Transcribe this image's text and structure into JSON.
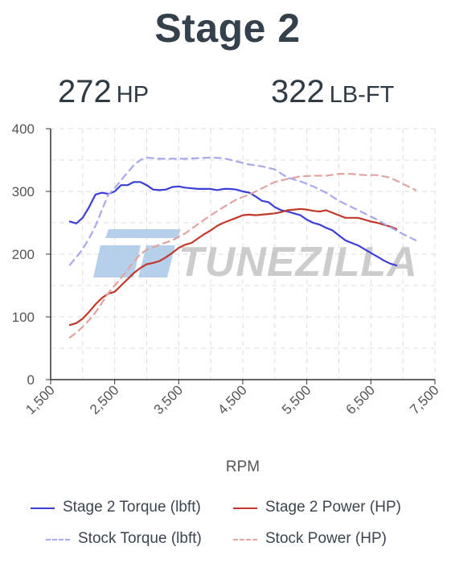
{
  "header": {
    "title": "Stage 2",
    "hp_value": "272",
    "hp_unit": "HP",
    "tq_value": "322",
    "tq_unit": "LB-FT"
  },
  "watermark": {
    "text": "TUNEZILLA"
  },
  "colors": {
    "stage2_torque": "#3b3fd8",
    "stage2_power": "#c0392b",
    "stock_torque": "#a8a8ee",
    "stock_power": "#e2a3a0",
    "grid": "#dcdcdc",
    "axis": "#333333",
    "watermark_blue": "#a9c8e8",
    "watermark_gray": "#c4c4c4"
  },
  "chart_data": {
    "type": "line",
    "title": "",
    "xlabel": "RPM",
    "ylabel": "",
    "xlim": [
      1500,
      7500
    ],
    "ylim": [
      0,
      400
    ],
    "x_ticks": [
      "1,500",
      "2,500",
      "3,500",
      "4,500",
      "5,500",
      "6,500",
      "7,500"
    ],
    "y_ticks": [
      "0",
      "100",
      "200",
      "300",
      "400"
    ],
    "grid": true,
    "legend_position": "bottom",
    "series": [
      {
        "name": "Stage 2 Torque (lbft)",
        "style": "solid",
        "color_key": "stage2_torque",
        "points": [
          [
            1800,
            252
          ],
          [
            1900,
            249
          ],
          [
            2000,
            258
          ],
          [
            2100,
            275
          ],
          [
            2200,
            295
          ],
          [
            2300,
            298
          ],
          [
            2400,
            296
          ],
          [
            2500,
            300
          ],
          [
            2600,
            310
          ],
          [
            2700,
            310
          ],
          [
            2800,
            315
          ],
          [
            2900,
            315
          ],
          [
            3000,
            310
          ],
          [
            3100,
            303
          ],
          [
            3200,
            302
          ],
          [
            3300,
            303
          ],
          [
            3400,
            307
          ],
          [
            3500,
            308
          ],
          [
            3600,
            306
          ],
          [
            3800,
            304
          ],
          [
            4000,
            304
          ],
          [
            4100,
            302
          ],
          [
            4200,
            304
          ],
          [
            4300,
            304
          ],
          [
            4400,
            303
          ],
          [
            4500,
            300
          ],
          [
            4600,
            298
          ],
          [
            4700,
            292
          ],
          [
            4800,
            285
          ],
          [
            4900,
            283
          ],
          [
            5000,
            275
          ],
          [
            5100,
            270
          ],
          [
            5200,
            268
          ],
          [
            5300,
            265
          ],
          [
            5400,
            262
          ],
          [
            5500,
            255
          ],
          [
            5600,
            250
          ],
          [
            5700,
            247
          ],
          [
            5800,
            242
          ],
          [
            5900,
            238
          ],
          [
            6000,
            230
          ],
          [
            6100,
            222
          ],
          [
            6200,
            218
          ],
          [
            6300,
            214
          ],
          [
            6400,
            208
          ],
          [
            6500,
            202
          ],
          [
            6600,
            196
          ],
          [
            6700,
            190
          ],
          [
            6800,
            185
          ],
          [
            6900,
            182
          ]
        ]
      },
      {
        "name": "Stage 2 Power (HP)",
        "style": "solid",
        "color_key": "stage2_power",
        "points": [
          [
            1800,
            87
          ],
          [
            1900,
            90
          ],
          [
            2000,
            97
          ],
          [
            2100,
            108
          ],
          [
            2200,
            120
          ],
          [
            2300,
            130
          ],
          [
            2400,
            137
          ],
          [
            2500,
            140
          ],
          [
            2600,
            150
          ],
          [
            2700,
            160
          ],
          [
            2800,
            170
          ],
          [
            2900,
            178
          ],
          [
            3000,
            184
          ],
          [
            3100,
            186
          ],
          [
            3200,
            189
          ],
          [
            3300,
            195
          ],
          [
            3400,
            202
          ],
          [
            3500,
            210
          ],
          [
            3600,
            215
          ],
          [
            3700,
            218
          ],
          [
            3800,
            225
          ],
          [
            3900,
            232
          ],
          [
            4000,
            238
          ],
          [
            4100,
            245
          ],
          [
            4200,
            250
          ],
          [
            4300,
            254
          ],
          [
            4400,
            258
          ],
          [
            4500,
            262
          ],
          [
            4600,
            263
          ],
          [
            4700,
            262
          ],
          [
            4800,
            263
          ],
          [
            4900,
            264
          ],
          [
            5000,
            265
          ],
          [
            5100,
            267
          ],
          [
            5200,
            270
          ],
          [
            5300,
            271
          ],
          [
            5400,
            272
          ],
          [
            5500,
            271
          ],
          [
            5600,
            269
          ],
          [
            5700,
            268
          ],
          [
            5800,
            270
          ],
          [
            5900,
            266
          ],
          [
            6000,
            262
          ],
          [
            6100,
            258
          ],
          [
            6200,
            258
          ],
          [
            6300,
            258
          ],
          [
            6400,
            255
          ],
          [
            6500,
            252
          ],
          [
            6600,
            250
          ],
          [
            6700,
            247
          ],
          [
            6800,
            244
          ],
          [
            6900,
            240
          ]
        ]
      },
      {
        "name": "Stock Torque (lbft)",
        "style": "dashed",
        "color_key": "stock_torque",
        "points": [
          [
            1800,
            183
          ],
          [
            1900,
            195
          ],
          [
            2000,
            208
          ],
          [
            2100,
            225
          ],
          [
            2200,
            245
          ],
          [
            2300,
            270
          ],
          [
            2400,
            295
          ],
          [
            2500,
            305
          ],
          [
            2600,
            318
          ],
          [
            2700,
            330
          ],
          [
            2800,
            342
          ],
          [
            2900,
            350
          ],
          [
            3000,
            354
          ],
          [
            3100,
            353
          ],
          [
            3200,
            352
          ],
          [
            3400,
            352
          ],
          [
            3600,
            352
          ],
          [
            3800,
            353
          ],
          [
            4000,
            354
          ],
          [
            4200,
            353
          ],
          [
            4400,
            348
          ],
          [
            4600,
            343
          ],
          [
            4800,
            340
          ],
          [
            5000,
            335
          ],
          [
            5200,
            322
          ],
          [
            5400,
            316
          ],
          [
            5600,
            308
          ],
          [
            5800,
            298
          ],
          [
            6000,
            285
          ],
          [
            6200,
            275
          ],
          [
            6400,
            265
          ],
          [
            6600,
            255
          ],
          [
            6800,
            243
          ],
          [
            7000,
            232
          ],
          [
            7200,
            222
          ]
        ]
      },
      {
        "name": "Stock Power (HP)",
        "style": "dashed",
        "color_key": "stock_power",
        "points": [
          [
            1800,
            67
          ],
          [
            1900,
            75
          ],
          [
            2000,
            84
          ],
          [
            2100,
            95
          ],
          [
            2200,
            107
          ],
          [
            2300,
            122
          ],
          [
            2400,
            138
          ],
          [
            2500,
            150
          ],
          [
            2600,
            162
          ],
          [
            2700,
            175
          ],
          [
            2800,
            188
          ],
          [
            2900,
            200
          ],
          [
            3000,
            207
          ],
          [
            3200,
            215
          ],
          [
            3400,
            222
          ],
          [
            3600,
            233
          ],
          [
            3800,
            248
          ],
          [
            4000,
            262
          ],
          [
            4200,
            275
          ],
          [
            4400,
            287
          ],
          [
            4600,
            295
          ],
          [
            4800,
            305
          ],
          [
            5000,
            315
          ],
          [
            5200,
            320
          ],
          [
            5400,
            324
          ],
          [
            5600,
            325
          ],
          [
            5800,
            325
          ],
          [
            6000,
            328
          ],
          [
            6200,
            328
          ],
          [
            6400,
            326
          ],
          [
            6600,
            326
          ],
          [
            6800,
            322
          ],
          [
            7000,
            312
          ],
          [
            7200,
            302
          ]
        ]
      }
    ]
  }
}
